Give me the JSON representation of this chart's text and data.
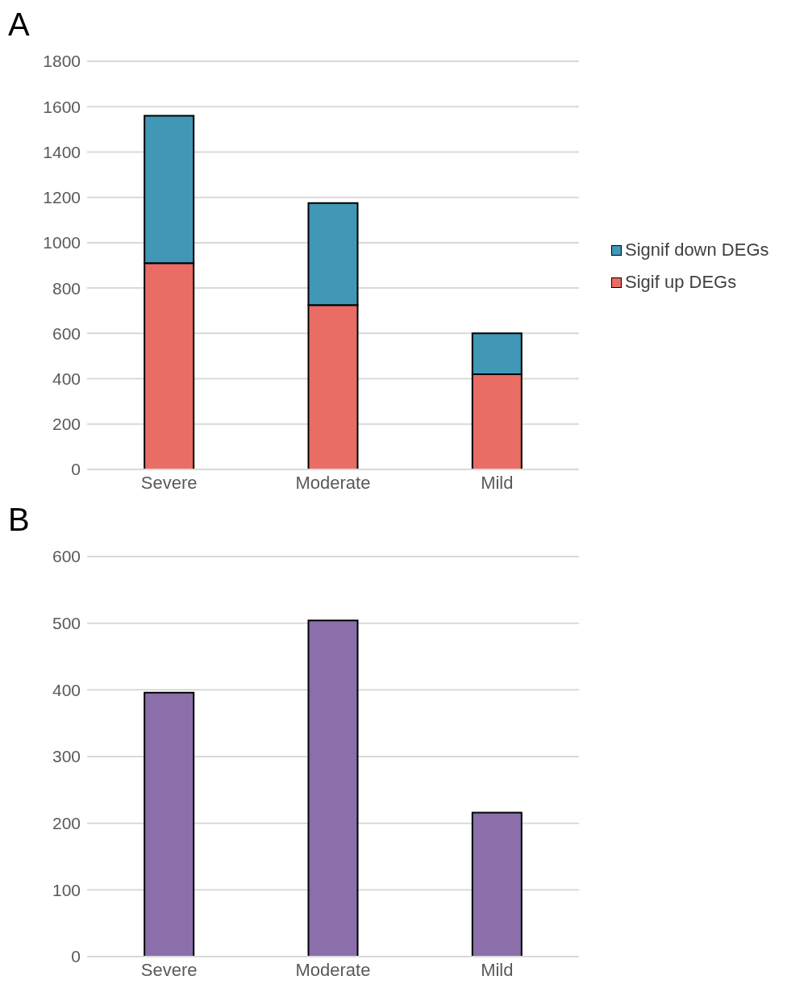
{
  "chart_data": [
    {
      "type": "bar",
      "title": "A",
      "categories": [
        "Severe",
        "Moderate",
        "Mild"
      ],
      "stacked": true,
      "series": [
        {
          "name": "Sigif up DEGs",
          "color": "#e96d64",
          "values": [
            910,
            725,
            420
          ]
        },
        {
          "name": "Signif down DEGs",
          "color": "#4097b6",
          "values": [
            650,
            450,
            180
          ]
        }
      ],
      "ylim": [
        0,
        1800
      ],
      "yticks": [
        0,
        200,
        400,
        600,
        800,
        1000,
        1200,
        1400,
        1600,
        1800
      ],
      "grid": "y",
      "legend": "right"
    },
    {
      "type": "bar",
      "title": "B",
      "categories": [
        "Severe",
        "Moderate",
        "Mild"
      ],
      "series": [
        {
          "color": "#8a6fab",
          "values": [
            396,
            504,
            216
          ]
        }
      ],
      "ylim": [
        0,
        600
      ],
      "yticks": [
        0,
        100,
        200,
        300,
        400,
        500,
        600
      ],
      "grid": "y"
    }
  ]
}
